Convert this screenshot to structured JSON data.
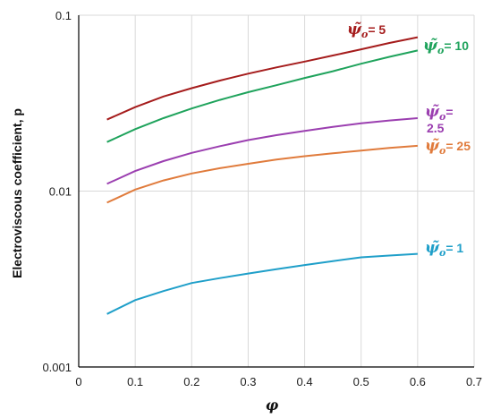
{
  "chart_data": {
    "type": "line",
    "xlabel": "φ",
    "ylabel": "Electroviscous coefficient, p",
    "xlim": [
      0,
      0.7
    ],
    "ylim": [
      0.001,
      0.1
    ],
    "yscale": "log",
    "grid": true,
    "x_ticks": [
      "0",
      "0.1",
      "0.2",
      "0.3",
      "0.4",
      "0.5",
      "0.6",
      "0.7"
    ],
    "y_ticks": [
      "0.001",
      "0.01",
      "0.1"
    ],
    "series": [
      {
        "name": "ψ̃o= 5",
        "label_main": "ψ̃",
        "label_sub": "o",
        "label_value": "= 5",
        "color": "#a51c1c",
        "x": [
          0.05,
          0.1,
          0.15,
          0.2,
          0.25,
          0.3,
          0.35,
          0.4,
          0.45,
          0.5,
          0.55,
          0.6
        ],
        "y": [
          0.0255,
          0.03,
          0.0345,
          0.0385,
          0.0425,
          0.0465,
          0.0505,
          0.0545,
          0.059,
          0.064,
          0.0695,
          0.075
        ]
      },
      {
        "name": "ψ̃o= 10",
        "label_main": "ψ̃",
        "label_sub": "o",
        "label_value": "= 10",
        "color": "#1fa35c",
        "x": [
          0.05,
          0.1,
          0.15,
          0.2,
          0.25,
          0.3,
          0.35,
          0.4,
          0.45,
          0.5,
          0.55,
          0.6
        ],
        "y": [
          0.019,
          0.0225,
          0.026,
          0.0295,
          0.033,
          0.0365,
          0.04,
          0.044,
          0.048,
          0.053,
          0.058,
          0.063
        ]
      },
      {
        "name": "ψ̃o= 2.5",
        "label_main": "ψ̃",
        "label_sub": "o",
        "label_value": "=",
        "label_value2": "2.5",
        "color": "#9b3fb0",
        "x": [
          0.05,
          0.1,
          0.15,
          0.2,
          0.25,
          0.3,
          0.35,
          0.4,
          0.45,
          0.5,
          0.55,
          0.6
        ],
        "y": [
          0.011,
          0.013,
          0.0148,
          0.0165,
          0.018,
          0.0195,
          0.0208,
          0.022,
          0.0232,
          0.0243,
          0.0252,
          0.026
        ]
      },
      {
        "name": "ψ̃o= 25",
        "label_main": "ψ̃",
        "label_sub": "o",
        "label_value": "= 25",
        "color": "#e07b3c",
        "x": [
          0.05,
          0.1,
          0.15,
          0.2,
          0.25,
          0.3,
          0.35,
          0.4,
          0.45,
          0.5,
          0.55,
          0.6
        ],
        "y": [
          0.0086,
          0.0102,
          0.0115,
          0.0126,
          0.0135,
          0.0143,
          0.0151,
          0.0158,
          0.0164,
          0.017,
          0.0176,
          0.0181
        ]
      },
      {
        "name": "ψ̃o= 1",
        "label_main": "ψ̃",
        "label_sub": "o",
        "label_value": "= 1",
        "color": "#1f9fc9",
        "x": [
          0.05,
          0.1,
          0.15,
          0.2,
          0.25,
          0.3,
          0.35,
          0.4,
          0.45,
          0.5,
          0.55,
          0.6
        ],
        "y": [
          0.002,
          0.0024,
          0.0027,
          0.003,
          0.0032,
          0.0034,
          0.0036,
          0.0038,
          0.004,
          0.0042,
          0.0043,
          0.0044
        ]
      }
    ]
  }
}
